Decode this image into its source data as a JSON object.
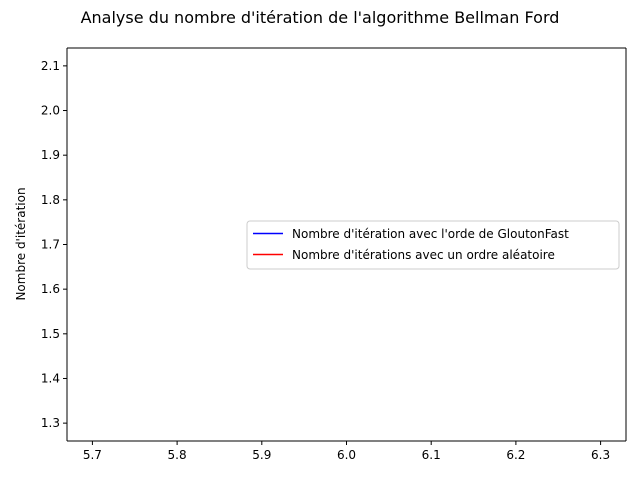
{
  "chart_data": {
    "type": "line",
    "title": "Analyse du nombre d'itération de l'algorithme Bellman Ford",
    "xlabel": "",
    "ylabel": "Nombre d'itération",
    "xlim": [
      5.67,
      6.33
    ],
    "ylim": [
      1.26,
      2.14
    ],
    "xticks": [
      5.7,
      5.8,
      5.9,
      6.0,
      6.1,
      6.2,
      6.3
    ],
    "xtick_labels": [
      "5.7",
      "5.8",
      "5.9",
      "6.0",
      "6.1",
      "6.2",
      "6.3"
    ],
    "yticks": [
      1.3,
      1.4,
      1.5,
      1.6,
      1.7,
      1.8,
      1.9,
      2.0,
      2.1
    ],
    "ytick_labels": [
      "1.3",
      "1.4",
      "1.5",
      "1.6",
      "1.7",
      "1.8",
      "1.9",
      "2.0",
      "2.1"
    ],
    "grid": false,
    "legend_position": "center-right",
    "series": [
      {
        "name": "Nombre d'itération avec l'orde de GloutonFast",
        "color": "#0000ff",
        "x": [],
        "y": []
      },
      {
        "name": "Nombre d'itérations avec un ordre aléatoire",
        "color": "#ff0000",
        "x": [],
        "y": []
      }
    ]
  }
}
